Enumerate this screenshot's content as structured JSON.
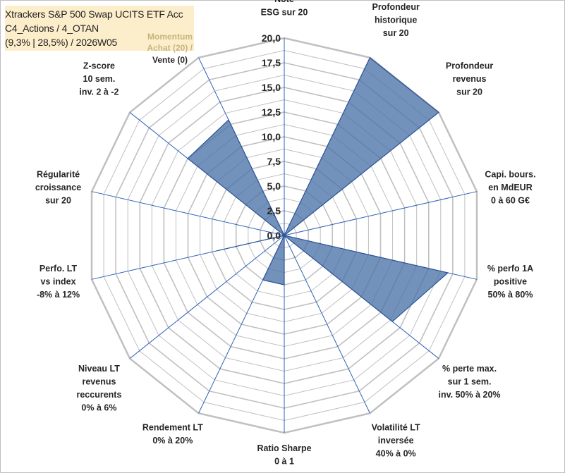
{
  "header": {
    "line1": "Xtrackers S&P 500 Swap UCITS ETF Acc",
    "line2": "C4_Actions / 4_OTAN",
    "line3": "(9,3% | 28,5%) / 2026W05",
    "momentum_title": "Momentum",
    "momentum_buy": "Achat (20) /",
    "momentum_sell": "Vente (0)"
  },
  "colors": {
    "fill": "#4a72a8",
    "outline": "#2f5597",
    "grid": "#c0c0c0",
    "spoke": "#2f62b8"
  },
  "chart_data": {
    "type": "radar",
    "title": "Xtrackers S&P 500 Swap UCITS ETF Acc",
    "rlim": [
      0,
      20
    ],
    "ticks": [
      "0,0",
      "2,5",
      "5,0",
      "7,5",
      "10,0",
      "12,5",
      "15,0",
      "17,5",
      "20,0"
    ],
    "categories": [
      [
        "Note",
        "ESG sur 20"
      ],
      [
        "Profondeur",
        "historique",
        "sur 20"
      ],
      [
        "Profondeur",
        "revenus",
        "sur 20"
      ],
      [
        "Capi. bours.",
        "en MdEUR",
        "0 à 60 G€"
      ],
      [
        "% perfo 1A",
        "positive",
        "50% à 80%"
      ],
      [
        "% perte max.",
        "sur 1 sem.",
        "inv. 50% à 20%"
      ],
      [
        "Volatilité LT",
        "inversée",
        "40% à 0%"
      ],
      [
        "Ratio Sharpe",
        "0 à 1"
      ],
      [
        "Rendement LT",
        "0% à 20%"
      ],
      [
        "Niveau LT",
        "revenus",
        "reccurents",
        "0% à 6%"
      ],
      [
        "Perfo. LT",
        "vs index",
        "-8% à 12%"
      ],
      [
        "Régularité",
        "croissance",
        "sur 20"
      ],
      [
        "Z-score",
        "10 sem.",
        "inv. 2 à -2"
      ],
      [
        "Momentum",
        "Achat (20) /",
        "Vente (0)"
      ]
    ],
    "series": [
      {
        "name": "Xtrackers S&P 500 Swap UCITS ETF Acc",
        "values": [
          0,
          20,
          20,
          0,
          17,
          14,
          0,
          5,
          5,
          0,
          7,
          0,
          12.5,
          13
        ]
      }
    ]
  }
}
